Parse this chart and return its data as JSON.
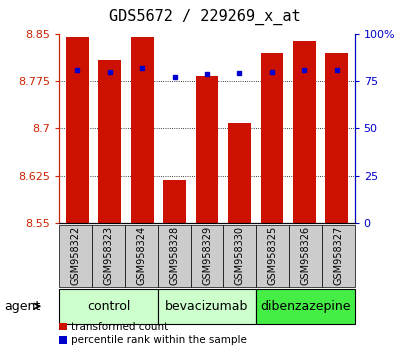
{
  "title": "GDS5672 / 229269_x_at",
  "samples": [
    "GSM958322",
    "GSM958323",
    "GSM958324",
    "GSM958328",
    "GSM958329",
    "GSM958330",
    "GSM958325",
    "GSM958326",
    "GSM958327"
  ],
  "red_values": [
    8.845,
    8.808,
    8.845,
    8.618,
    8.783,
    8.708,
    8.82,
    8.838,
    8.82
  ],
  "blue_values": [
    8.793,
    8.79,
    8.796,
    8.782,
    8.786,
    8.787,
    8.79,
    8.793,
    8.792
  ],
  "y_min": 8.55,
  "y_max": 8.85,
  "y_ticks": [
    8.55,
    8.625,
    8.7,
    8.775,
    8.85
  ],
  "y_tick_labels": [
    "8.55",
    "8.625",
    "8.7",
    "8.775",
    "8.85"
  ],
  "right_ticks": [
    0,
    25,
    50,
    75,
    100
  ],
  "right_tick_labels": [
    "0",
    "25",
    "50",
    "75",
    "100%"
  ],
  "groups": [
    {
      "label": "control",
      "indices": [
        0,
        1,
        2
      ],
      "color": "#ccffcc"
    },
    {
      "label": "bevacizumab",
      "indices": [
        3,
        4,
        5
      ],
      "color": "#ccffcc"
    },
    {
      "label": "dibenzazepine",
      "indices": [
        6,
        7,
        8
      ],
      "color": "#44ee44"
    }
  ],
  "bar_color": "#cc1100",
  "blue_color": "#0000cc",
  "bar_width": 0.7,
  "baseline": 8.55,
  "agent_label": "agent",
  "legend_red": "transformed count",
  "legend_blue": "percentile rank within the sample",
  "bar_box_color": "#cccccc",
  "left_color": "#cc2200",
  "right_color": "#0000cc",
  "title_fontsize": 11,
  "tick_fontsize": 8,
  "label_fontsize": 9,
  "group_fontsize": 9,
  "sample_fontsize": 7
}
